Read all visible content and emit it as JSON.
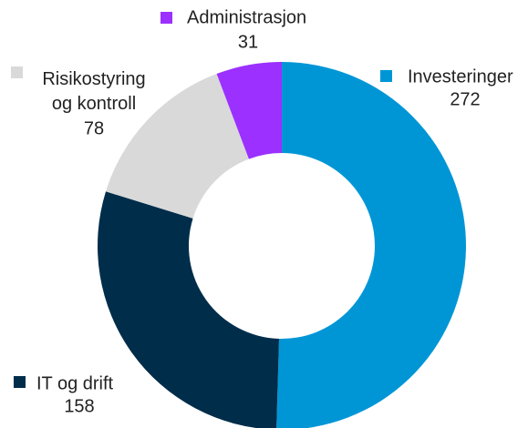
{
  "chart_data": {
    "type": "donut",
    "categories": [
      "Investeringer",
      "IT og drift",
      "Risikostyring og kontroll",
      "Administrasjon"
    ],
    "values": [
      272,
      158,
      78,
      31
    ],
    "colors": [
      "#0096d6",
      "#002d4a",
      "#d9d9d9",
      "#9b30ff"
    ]
  }
}
